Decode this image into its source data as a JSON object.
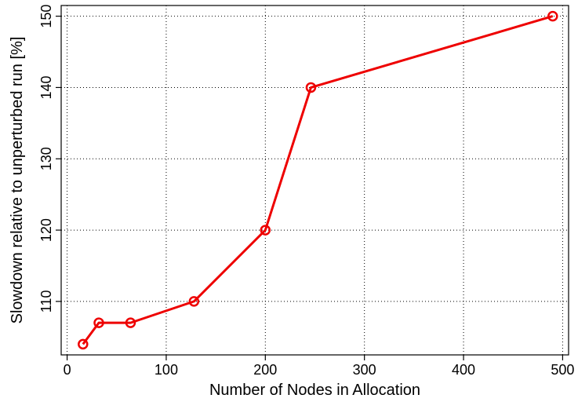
{
  "chart_data": {
    "type": "line",
    "title": "",
    "xlabel": "Number of Nodes in Allocation",
    "ylabel": "Slowdown relative to unperturbed run [%]",
    "xlim": [
      -6,
      506
    ],
    "ylim": [
      102.5,
      151.5
    ],
    "xticks": [
      0,
      100,
      200,
      300,
      400,
      500
    ],
    "yticks": [
      110,
      120,
      130,
      140,
      150
    ],
    "grid": true,
    "legend": null,
    "series": [
      {
        "color": "#ee0000",
        "marker": "circle-open",
        "x": [
          16,
          32,
          64,
          128,
          200,
          246,
          490
        ],
        "y": [
          104,
          107,
          107,
          110,
          120,
          140,
          150
        ]
      }
    ]
  }
}
